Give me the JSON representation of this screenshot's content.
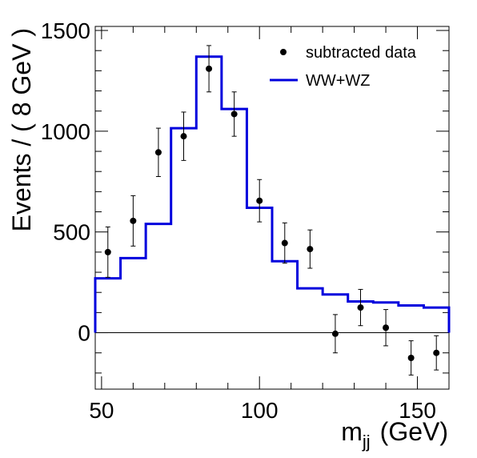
{
  "chart_data": {
    "type": "histogram",
    "title": "",
    "xlabel": "m",
    "xlabel_subscript": "jj",
    "xlabel_unit": "(GeV)",
    "ylabel": "Events / ( 8 GeV )",
    "xlim": [
      48,
      160
    ],
    "ylim": [
      -280,
      1520
    ],
    "x_ticks": [
      50,
      100,
      150
    ],
    "y_ticks": [
      0,
      500,
      1000,
      1500
    ],
    "legend_position": "top-right",
    "colors": {
      "histogram": "#0000dd",
      "data": "#000000"
    },
    "series": [
      {
        "name": "subtracted data",
        "kind": "points-with-errors",
        "x": [
          52,
          60,
          68,
          76,
          84,
          92,
          100,
          108,
          116,
          124,
          132,
          140,
          148,
          156
        ],
        "y": [
          400,
          555,
          895,
          975,
          1310,
          1085,
          655,
          445,
          415,
          -5,
          125,
          25,
          -125,
          -100
        ],
        "yerr": [
          125,
          125,
          120,
          120,
          115,
          110,
          105,
          100,
          95,
          95,
          90,
          90,
          85,
          85
        ]
      },
      {
        "name": "WW+WZ",
        "kind": "step",
        "bin_edges": [
          48,
          56,
          64,
          72,
          80,
          88,
          96,
          104,
          112,
          120,
          128,
          136,
          144,
          152,
          160
        ],
        "values": [
          270,
          370,
          540,
          1015,
          1370,
          1110,
          620,
          355,
          220,
          190,
          155,
          150,
          135,
          125
        ]
      }
    ]
  }
}
